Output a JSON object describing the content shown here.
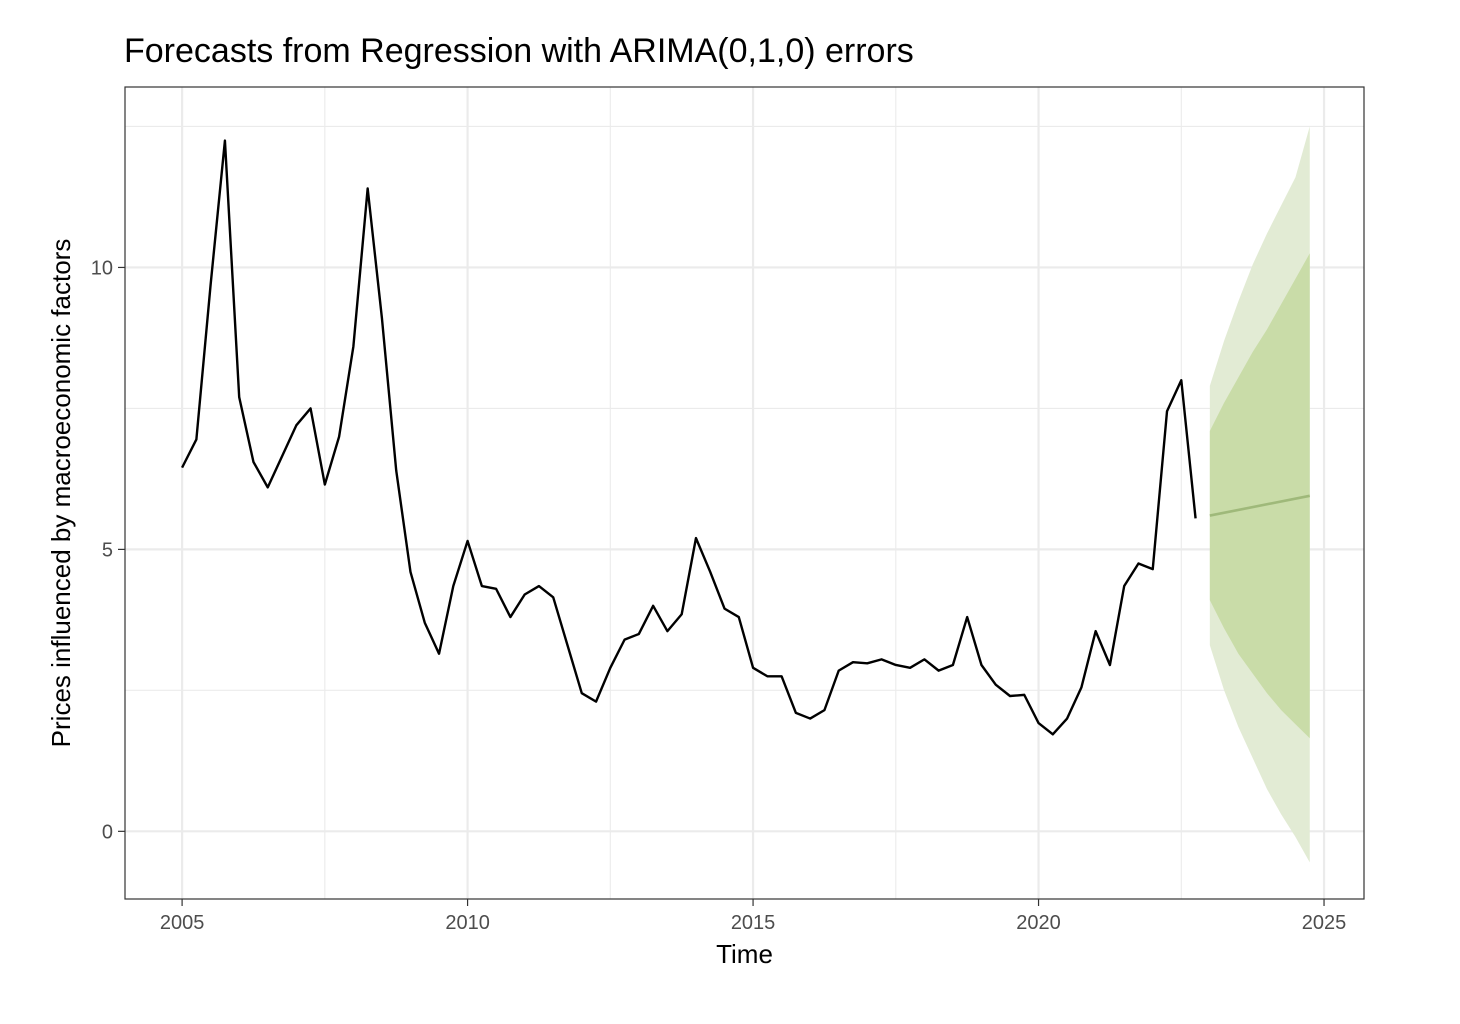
{
  "chart_data": {
    "type": "line",
    "title": "Forecasts from Regression with ARIMA(0,1,0) errors",
    "xlabel": "Time",
    "ylabel": "Prices influenced by macroeconomic factors",
    "xlim": [
      2004,
      2025.7
    ],
    "ylim": [
      -1.2,
      13.2
    ],
    "x_ticks": [
      2005,
      2010,
      2015,
      2020,
      2025
    ],
    "x_tick_labels": [
      "2005",
      "2010",
      "2015",
      "2020",
      "2025"
    ],
    "y_ticks": [
      0,
      5,
      10
    ],
    "y_tick_labels": [
      "0",
      "5",
      "10"
    ],
    "grid": true,
    "legend": "none",
    "colors": {
      "series": "#000000",
      "forecast_line": "#9fb97a",
      "pi80": "#c9dca8",
      "pi95": "#e2ebd4",
      "grid": "#ebebeb",
      "border": "#333333"
    },
    "series": [
      {
        "x": [
          2005.0,
          2005.25,
          2005.5,
          2005.75,
          2006.0,
          2006.25,
          2006.5,
          2006.75,
          2007.0,
          2007.25,
          2007.5,
          2007.75,
          2008.0,
          2008.25,
          2008.5,
          2008.75,
          2009.0,
          2009.25,
          2009.5,
          2009.75,
          2010.0,
          2010.25,
          2010.5,
          2010.75,
          2011.0,
          2011.25,
          2011.5,
          2011.75,
          2012.0,
          2012.25,
          2012.5,
          2012.75,
          2013.0,
          2013.25,
          2013.5,
          2013.75,
          2014.0,
          2014.25,
          2014.5,
          2014.75,
          2015.0,
          2015.25,
          2015.5,
          2015.75,
          2016.0,
          2016.25,
          2016.5,
          2016.75,
          2017.0,
          2017.25,
          2017.5,
          2017.75,
          2018.0,
          2018.25,
          2018.5,
          2018.75,
          2019.0,
          2019.25,
          2019.5,
          2019.75,
          2020.0,
          2020.25,
          2020.5,
          2020.75,
          2021.0,
          2021.25,
          2021.5,
          2021.75,
          2022.0,
          2022.25,
          2022.5,
          2022.75
        ],
        "y": [
          6.45,
          6.95,
          9.7,
          12.25,
          7.7,
          6.55,
          6.1,
          6.65,
          7.2,
          7.5,
          6.15,
          7.0,
          8.6,
          11.4,
          9.1,
          6.4,
          4.6,
          3.7,
          3.15,
          4.35,
          5.15,
          4.35,
          4.3,
          3.8,
          4.2,
          4.35,
          4.15,
          3.3,
          2.45,
          2.3,
          2.9,
          3.4,
          3.5,
          4.0,
          3.55,
          3.85,
          5.2,
          4.6,
          3.95,
          3.8,
          2.9,
          2.75,
          2.75,
          2.1,
          2.0,
          2.15,
          2.85,
          3.0,
          2.98,
          3.05,
          2.95,
          2.9,
          3.05,
          2.85,
          2.95,
          3.8,
          2.95,
          2.6,
          2.4,
          2.42,
          1.92,
          1.72,
          2.0,
          2.55,
          3.55,
          2.95,
          4.35,
          4.75,
          4.65,
          7.45,
          8.0,
          5.55
        ]
      },
      {
        "x": [
          2023.0,
          2024.75
        ],
        "y": [
          5.6,
          5.95
        ]
      }
    ],
    "prediction_intervals": [
      {
        "level": "80",
        "x": [
          2023.0,
          2023.25,
          2023.5,
          2023.75,
          2024.0,
          2024.25,
          2024.5,
          2024.75
        ],
        "lower": [
          4.1,
          3.6,
          3.15,
          2.8,
          2.45,
          2.15,
          1.9,
          1.65
        ],
        "upper": [
          7.1,
          7.6,
          8.05,
          8.5,
          8.9,
          9.35,
          9.8,
          10.25
        ]
      },
      {
        "level": "95",
        "x": [
          2023.0,
          2023.25,
          2023.5,
          2023.75,
          2024.0,
          2024.25,
          2024.5,
          2024.75
        ],
        "lower": [
          3.3,
          2.5,
          1.85,
          1.3,
          0.75,
          0.3,
          -0.1,
          -0.55
        ],
        "upper": [
          7.9,
          8.7,
          9.4,
          10.05,
          10.6,
          11.1,
          11.6,
          12.5
        ]
      }
    ]
  }
}
